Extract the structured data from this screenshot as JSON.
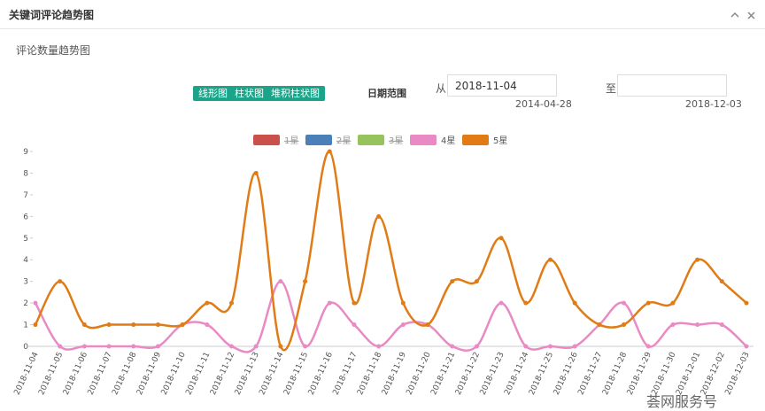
{
  "header": {
    "title": "关键词评论趋势图"
  },
  "section_title": "评论数量趋势图",
  "chart_buttons": [
    "线形图",
    "柱状图",
    "堆积柱状图"
  ],
  "date_range": {
    "label": "日期范围",
    "from_label": "从",
    "from_value": "2018-11-04",
    "from_hint": "2014-04-28",
    "to_label": "至",
    "to_hint": "2018-12-03"
  },
  "watermark": "荟网服务号",
  "chart_data": {
    "type": "line",
    "x": [
      "2018-11-04",
      "2018-11-05",
      "2018-11-06",
      "2018-11-07",
      "2018-11-08",
      "2018-11-09",
      "2018-11-10",
      "2018-11-11",
      "2018-11-12",
      "2018-11-13",
      "2018-11-14",
      "2018-11-15",
      "2018-11-16",
      "2018-11-17",
      "2018-11-18",
      "2018-11-19",
      "2018-11-20",
      "2018-11-21",
      "2018-11-22",
      "2018-11-23",
      "2018-11-24",
      "2018-11-25",
      "2018-11-26",
      "2018-11-27",
      "2018-11-28",
      "2018-11-29",
      "2018-11-30",
      "2018-12-01",
      "2018-12-02",
      "2018-12-03"
    ],
    "ylim": [
      0,
      9
    ],
    "yticks": [
      0,
      1,
      2,
      3,
      4,
      5,
      6,
      7,
      8,
      9
    ],
    "smooth": true,
    "series": [
      {
        "name": "1星",
        "color": "#c9514a",
        "hidden": true
      },
      {
        "name": "2星",
        "color": "#4a7fb8",
        "hidden": true
      },
      {
        "name": "3星",
        "color": "#96c35b",
        "hidden": true
      },
      {
        "name": "4星",
        "color": "#e98ac4",
        "values": [
          2,
          0,
          0,
          0,
          0,
          0,
          1,
          1,
          0,
          0,
          3,
          0,
          2,
          1,
          0,
          1,
          1,
          0,
          0,
          2,
          0,
          0,
          0,
          1,
          2,
          0,
          1,
          1,
          1,
          0
        ]
      },
      {
        "name": "5星",
        "color": "#e07b16",
        "values": [
          1,
          3,
          1,
          1,
          1,
          1,
          1,
          2,
          2,
          8,
          0,
          3,
          9,
          2,
          6,
          2,
          1,
          3,
          3,
          5,
          2,
          4,
          2,
          1,
          1,
          2,
          2,
          4,
          3,
          2
        ]
      }
    ]
  }
}
